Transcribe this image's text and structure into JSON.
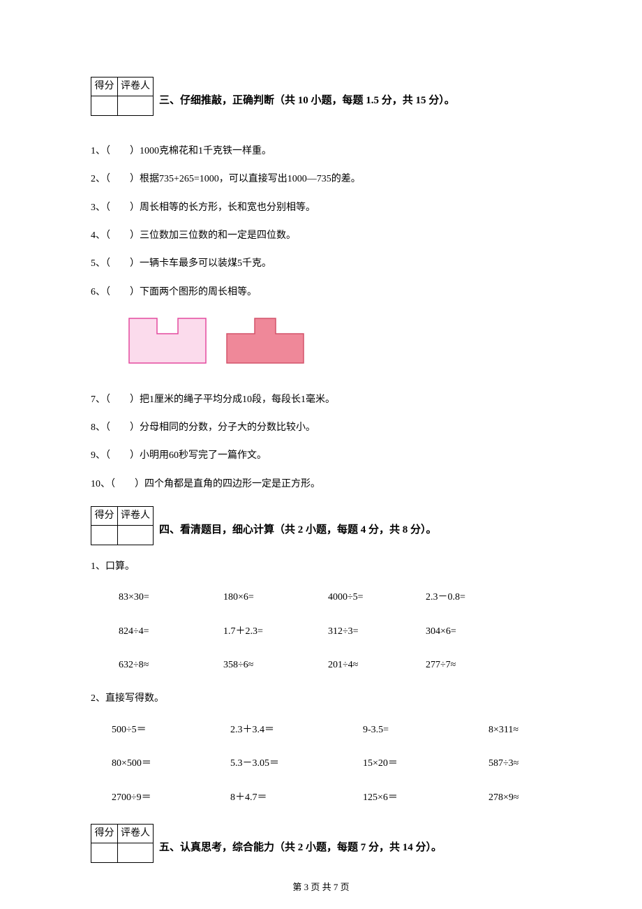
{
  "score_table": {
    "header_score": "得分",
    "header_grader": "评卷人"
  },
  "section3": {
    "title": "三、仔细推敲，正确判断（共 10 小题，每题 1.5 分，共 15 分）。",
    "questions": [
      "1、（　　）1000克棉花和1千克铁一样重。",
      "2、（　　）根据735+265=1000，可以直接写出1000—735的差。",
      "3、（　　）周长相等的长方形，长和宽也分别相等。",
      "4、（　　）三位数加三位数的和一定是四位数。",
      "5、（　　）一辆卡车最多可以装煤5千克。",
      "6、（　　）下面两个图形的周长相等。",
      "7、（　　）把1厘米的绳子平均分成10段，每段长1毫米。",
      "8、（　　）分母相同的分数，分子大的分数比较小。",
      "9、（　　）小明用60秒写完了一篇作文。",
      "10、（　　）四个角都是直角的四边形一定是正方形。"
    ],
    "figure": {
      "shape1_fill": "#fbdbec",
      "shape1_stroke": "#e44a9e",
      "shape2_fill": "#ef8899",
      "shape2_stroke": "#d3536b"
    }
  },
  "section4": {
    "title": "四、看清题目，细心计算（共 2 小题，每题 4 分，共 8 分）。",
    "part1_label": "1、口算。",
    "part1_rows": [
      [
        "83×30=",
        "180×6=",
        "4000÷5=",
        "2.3－0.8="
      ],
      [
        "824÷4=",
        "1.7＋2.3=",
        "312÷3=",
        "304×6="
      ],
      [
        "632÷8≈",
        "358÷6≈",
        "201÷4≈",
        "277÷7≈"
      ]
    ],
    "part1_col_widths": [
      150,
      150,
      140,
      120
    ],
    "part2_label": "2、直接写得数。",
    "part2_rows": [
      [
        "500÷5＝",
        "2.3＋3.4＝",
        "9-3.5=",
        "8×311≈"
      ],
      [
        "80×500＝",
        "5.3－3.05＝",
        "15×20＝",
        "587÷3≈"
      ],
      [
        "2700÷9＝",
        "8＋4.7＝",
        "125×6＝",
        "278×9≈"
      ]
    ],
    "part2_col_widths": [
      170,
      190,
      180,
      110
    ]
  },
  "section5": {
    "title": "五、认真思考，综合能力（共 2 小题，每题 7 分，共 14 分）。"
  },
  "footer": "第 3 页 共 7 页"
}
